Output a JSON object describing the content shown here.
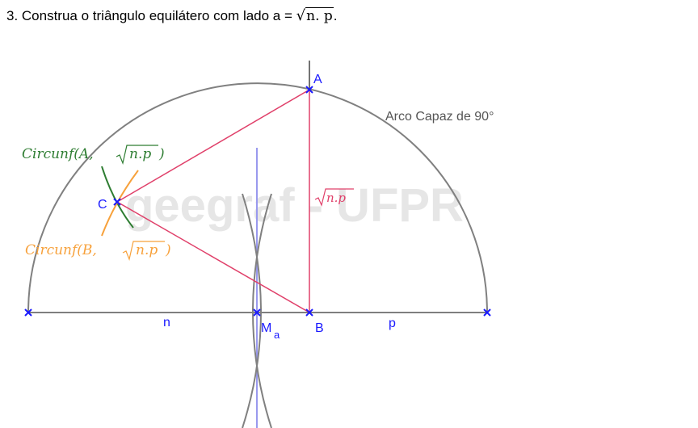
{
  "header": {
    "prefix": "3. Construa o triângulo equilátero com lado a = ",
    "radicand": "n. p",
    "suffix": "."
  },
  "watermark": "geegraf - UFPR",
  "labels": {
    "arc": "Arco Capaz de 90°",
    "point_a": "A",
    "point_b": "B",
    "point_c": "C",
    "midpoint": "M",
    "midpoint_sub": "a",
    "segment_n": "n",
    "segment_p": "p",
    "side_length": "n.p",
    "circle_a_prefix": "Circunf(A, ",
    "circle_a_radicand": "n.p",
    "circle_a_suffix": ")",
    "circle_b_prefix": "Circunf(B, ",
    "circle_b_radicand": "n.p",
    "circle_b_suffix": ")"
  },
  "colors": {
    "blue_points": "#1a1aff",
    "triangle": "#e0406a",
    "semicircle": "#808080",
    "circle_a": "#2e7d32",
    "circle_b": "#f7a13b",
    "bisector": "#9999ee",
    "watermark": "#e6e6e6"
  }
}
